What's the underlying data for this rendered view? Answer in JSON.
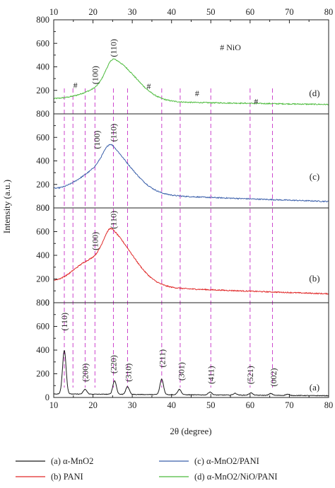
{
  "chart_data": {
    "type": "line",
    "xlabel": "2θ (degree)",
    "ylabel": "Intensity (a.u.)",
    "xlim": [
      10,
      80
    ],
    "x_ticks": [
      "10",
      "20",
      "30",
      "40",
      "50",
      "60",
      "70",
      "80"
    ],
    "ylim": [
      0,
      800
    ],
    "y_ticks_full": [
      "0",
      "200",
      "400",
      "600",
      "800"
    ],
    "y_ticks_top_panel": [
      "200",
      "400",
      "600",
      "800"
    ],
    "grid": false,
    "legend_position": "bottom",
    "panels": [
      {
        "id": "d",
        "label": "(d)",
        "series": "α-MnO2/NiO/PANI",
        "color": "#4cbb3c",
        "baseline": 125,
        "peaks": [
          {
            "x": 15.0,
            "y": 160
          },
          {
            "x": 21.0,
            "y": 280
          },
          {
            "x": 25.5,
            "y": 505
          }
        ],
        "end_value": 80,
        "annotations": [
          {
            "text": "#",
            "x": 15.5,
            "y": 220
          },
          {
            "text": "(100)",
            "x": 20.5,
            "y": 330
          },
          {
            "text": "(110)",
            "x": 25.2,
            "y": 560
          },
          {
            "text": "#",
            "x": 34.2,
            "y": 210
          },
          {
            "text": "#",
            "x": 46.5,
            "y": 150
          },
          {
            "text": "#",
            "x": 61.5,
            "y": 80
          }
        ],
        "legend_note": "# NiO"
      },
      {
        "id": "c",
        "label": "(c)",
        "series": "α-MnO2/PANI",
        "color": "#3a5faa",
        "baseline": 160,
        "peaks": [
          {
            "x": 16.5,
            "y": 270
          },
          {
            "x": 21.5,
            "y": 460
          },
          {
            "x": 25.0,
            "y": 530
          }
        ],
        "end_value": 55,
        "annotations": [
          {
            "text": "(100)",
            "x": 21.0,
            "y": 580
          },
          {
            "text": "(110)",
            "x": 25.2,
            "y": 640
          }
        ]
      },
      {
        "id": "b",
        "label": "(b)",
        "series": "PANI",
        "color": "#e02828",
        "baseline": 180,
        "peaks": [
          {
            "x": 16.5,
            "y": 350
          },
          {
            "x": 21.0,
            "y": 470
          },
          {
            "x": 25.0,
            "y": 650
          }
        ],
        "end_value": 75,
        "annotations": [
          {
            "text": "(100)",
            "x": 20.5,
            "y": 520
          },
          {
            "text": "(110)",
            "x": 25.2,
            "y": 700
          }
        ]
      },
      {
        "id": "a",
        "label": "(a)",
        "series": "α-MnO2",
        "color": "#1a1a1a",
        "baseline": 30,
        "peaks": [
          {
            "x": 12.7,
            "y": 400
          },
          {
            "x": 18.0,
            "y": 70
          },
          {
            "x": 25.5,
            "y": 145
          },
          {
            "x": 28.8,
            "y": 95
          },
          {
            "x": 37.5,
            "y": 160
          },
          {
            "x": 42.0,
            "y": 75
          },
          {
            "x": 49.8,
            "y": 55
          },
          {
            "x": 56.2,
            "y": 45
          },
          {
            "x": 60.2,
            "y": 50
          },
          {
            "x": 65.3,
            "y": 45
          },
          {
            "x": 69.5,
            "y": 40
          }
        ],
        "end_value": 15,
        "annotations": [
          {
            "text": "(110)",
            "x": 12.7,
            "y": 640
          },
          {
            "text": "(200)",
            "x": 18.0,
            "y": 210
          },
          {
            "text": "(220)",
            "x": 25.2,
            "y": 280
          },
          {
            "text": "(310)",
            "x": 29.0,
            "y": 210
          },
          {
            "text": "(211)",
            "x": 37.6,
            "y": 330
          },
          {
            "text": "(301)",
            "x": 42.5,
            "y": 220
          },
          {
            "text": "(411)",
            "x": 50.0,
            "y": 190
          },
          {
            "text": "(521)",
            "x": 60.0,
            "y": 190
          },
          {
            "text": "(002)",
            "x": 66.0,
            "y": 170
          }
        ]
      }
    ],
    "reference_lines_x": [
      12.7,
      14.9,
      18.0,
      20.5,
      25.2,
      28.8,
      37.5,
      42.2,
      50.0,
      60.0,
      65.7
    ],
    "reference_line_color": "#cc44cc",
    "legend": [
      {
        "text": "(a) α-MnO2",
        "color": "#1a1a1a"
      },
      {
        "text": "(b) PANI",
        "color": "#e02828"
      },
      {
        "text": "(c) α-MnO2/PANI",
        "color": "#3a5faa"
      },
      {
        "text": "(d) α-MnO2/NiO/PANI",
        "color": "#4cbb3c"
      }
    ]
  }
}
